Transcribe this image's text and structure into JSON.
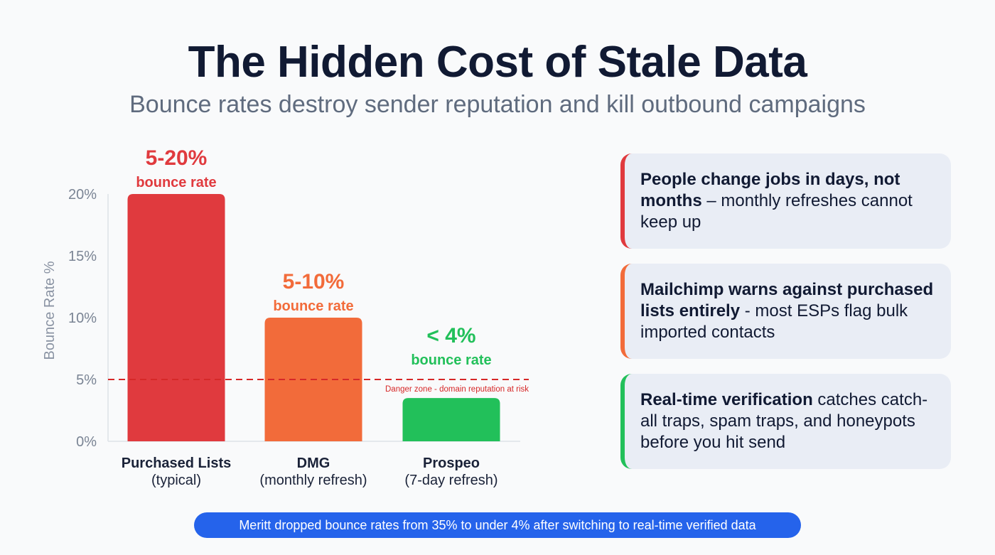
{
  "title": "The Hidden Cost of Stale Data",
  "subtitle": "Bounce rates destroy sender reputation and kill outbound campaigns",
  "chart_data": {
    "type": "bar",
    "categories": [
      "Purchased Lists",
      "DMG",
      "Prospeo"
    ],
    "category_sublabels": [
      "(typical)",
      "(monthly refresh)",
      "(7-day refresh)"
    ],
    "values": [
      20,
      10,
      3.5
    ],
    "colors": [
      "#e03a3e",
      "#f26b3a",
      "#22c05a"
    ],
    "data_labels": [
      "5-20%",
      "5-10%",
      "< 4%"
    ],
    "data_sublabel": "bounce rate",
    "ylabel": "Bounce Rate %",
    "ylim": [
      0,
      20
    ],
    "yticks": [
      0,
      5,
      10,
      15,
      20
    ],
    "ytick_labels": [
      "0%",
      "5%",
      "10%",
      "15%",
      "20%"
    ],
    "reference_line": {
      "value": 5,
      "label": "Danger zone - domain reputation at risk",
      "color": "#d62828"
    }
  },
  "cards": [
    {
      "bold": "People change jobs in days, not months",
      "rest": " – monthly refreshes cannot keep up",
      "color": "#e03a3e"
    },
    {
      "bold": "Mailchimp warns against purchased lists entirely",
      "rest": " - most ESPs flag bulk imported contacts",
      "color": "#f26b3a"
    },
    {
      "bold": "Real-time verification",
      "rest": " catches catch-all traps, spam traps, and honeypots before you hit send",
      "color": "#22c05a"
    }
  ],
  "banner": "Meritt dropped bounce rates from 35% to under 4% after switching to real-time verified data"
}
